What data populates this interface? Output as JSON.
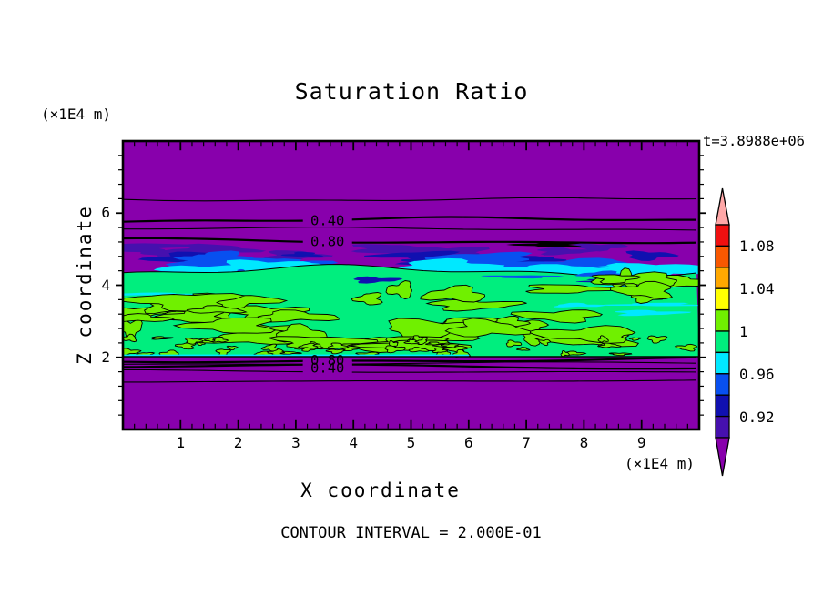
{
  "title": "Saturation Ratio",
  "time_label": "t=3.8988e+06",
  "y_axis": {
    "label": "Z coordinate",
    "unit": "(×1E4 m)",
    "ticks": [
      {
        "value": 2,
        "label": "2"
      },
      {
        "value": 4,
        "label": "4"
      },
      {
        "value": 6,
        "label": "6"
      }
    ]
  },
  "x_axis": {
    "label": "X coordinate",
    "unit": "(×1E4 m)",
    "ticks": [
      {
        "value": 1,
        "label": "1"
      },
      {
        "value": 2,
        "label": "2"
      },
      {
        "value": 3,
        "label": "3"
      },
      {
        "value": 4,
        "label": "4"
      },
      {
        "value": 5,
        "label": "5"
      },
      {
        "value": 6,
        "label": "6"
      },
      {
        "value": 7,
        "label": "7"
      },
      {
        "value": 8,
        "label": "8"
      },
      {
        "value": 9,
        "label": "9"
      }
    ]
  },
  "footer": {
    "contour_interval": "CONTOUR INTERVAL = 2.000E-01"
  },
  "colorbar": {
    "range": [
      0.9,
      1.1
    ],
    "block_step": 0.02,
    "colors_top_to_bottom": [
      "#F01010",
      "#F85800",
      "#FFA800",
      "#FFFF00",
      "#70F000",
      "#00EE7E",
      "#00E8FF",
      "#0850F0",
      "#1010B0",
      "#4610AE"
    ],
    "over_color": "#FFA8A8",
    "under_color": "#8800AC",
    "labels": [
      {
        "value": 1.08,
        "label": "1.08"
      },
      {
        "value": 1.04,
        "label": "1.04"
      },
      {
        "value": 1.0,
        "label": "1"
      },
      {
        "value": 0.96,
        "label": "0.96"
      },
      {
        "value": 0.92,
        "label": "0.92"
      }
    ]
  },
  "chart_data": {
    "type": "heatmap",
    "subtype": "filled-contour",
    "title": "Saturation Ratio",
    "xlabel": "X coordinate",
    "ylabel": "Z coordinate",
    "axis_units": "(×1E4 m)",
    "time_annotation": "t=3.8988e+06",
    "xlim": [
      0,
      10
    ],
    "ylim": [
      0,
      8
    ],
    "contour_interval": 0.2,
    "palette": {
      "purple": "#8800AC",
      "indigo": "#4610AE",
      "navy": "#1010B0",
      "blue": "#0850F0",
      "cyan": "#00E8FF",
      "springgreen": "#00EE7E",
      "chartreuse": "#70F000",
      "yellow": "#FFFF00",
      "orange": "#FFA800",
      "orangered": "#F85800",
      "red": "#F01010",
      "pink": "#FFA8A8",
      "black": "#000000"
    },
    "layers": [
      {
        "name": "upper-unsaturated",
        "y_range": [
          5.1,
          8.0
        ],
        "color": "#8800AC",
        "value": "saturation < 0.9"
      },
      {
        "name": "upper-transition",
        "y_range": [
          4.4,
          5.15
        ],
        "colors": [
          "#4610AE",
          "#1010B0",
          "#0850F0",
          "#00E8FF"
        ],
        "value": "0.90 - 0.98"
      },
      {
        "name": "saturated-band",
        "y_range": [
          2.02,
          4.48
        ],
        "color": "#00EE7E",
        "patch_color": "#70F000",
        "value": "0.98 - 1.02"
      },
      {
        "name": "lower-unsaturated",
        "y_range": [
          0,
          2.0
        ],
        "color": "#8800AC",
        "value": "saturation < 0.9"
      }
    ],
    "contour_lines": [
      {
        "y": 6.38,
        "weight": "thin"
      },
      {
        "y": 5.81,
        "weight": "thick",
        "label": "0.40",
        "label_x": 3.55
      },
      {
        "y": 5.56,
        "weight": "thin"
      },
      {
        "y": 5.23,
        "weight": "thick",
        "label": "0.80",
        "label_x": 3.55
      },
      {
        "y": 1.93,
        "weight": "thick",
        "label": "0.80",
        "label_x": 3.55
      },
      {
        "y": 1.82,
        "weight": "thin"
      },
      {
        "y": 1.72,
        "weight": "thick",
        "label": "0.40",
        "label_x": 3.55
      },
      {
        "y": 1.62,
        "weight": "thin"
      },
      {
        "y": 1.36,
        "weight": "thin"
      }
    ]
  }
}
